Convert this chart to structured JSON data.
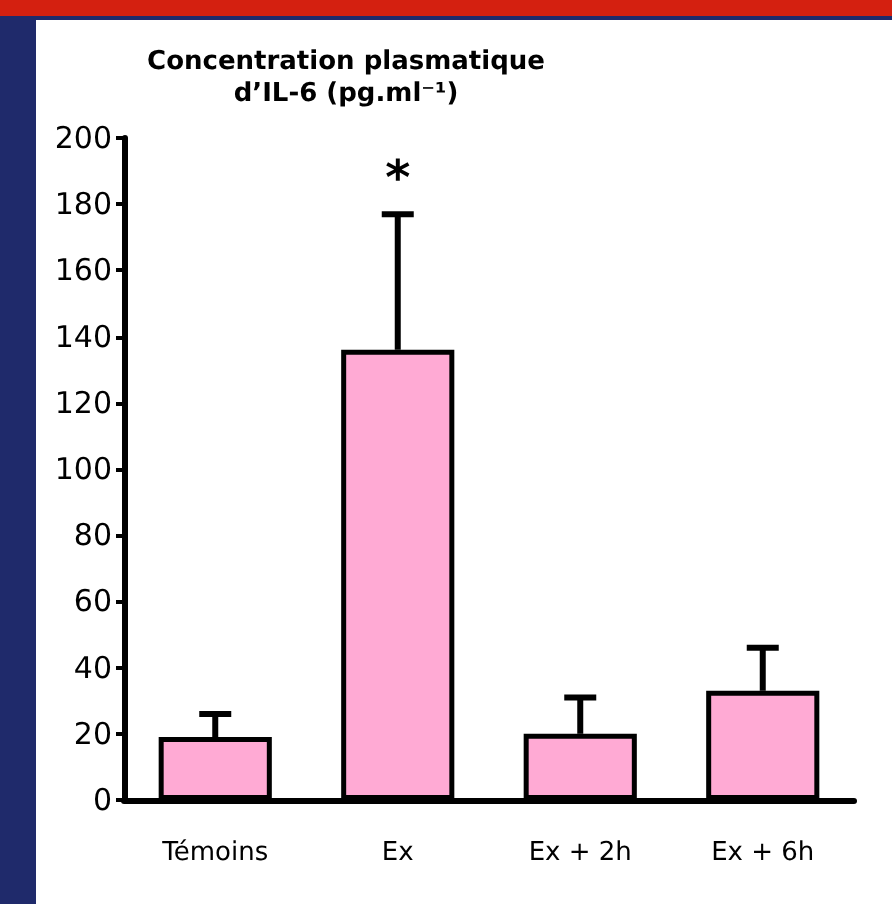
{
  "chart_data": {
    "type": "bar",
    "title": "Concentration plasmatique\nd’IL-6 (pg.ml⁻¹)",
    "categories": [
      "Témoins",
      "Ex",
      "Ex + 2h",
      "Ex + 6h"
    ],
    "values": [
      19,
      136,
      20,
      33
    ],
    "errors": [
      [
        19,
        26
      ],
      [
        136,
        177
      ],
      [
        20,
        31
      ],
      [
        33,
        46
      ]
    ],
    "color": "#ffaad4",
    "ylim": [
      0,
      200
    ],
    "yticks": [
      0,
      20,
      40,
      60,
      80,
      100,
      120,
      140,
      160,
      180,
      200
    ],
    "grid": false,
    "annotations": [
      {
        "text": "*",
        "x": "Ex",
        "y": 177
      }
    ]
  }
}
